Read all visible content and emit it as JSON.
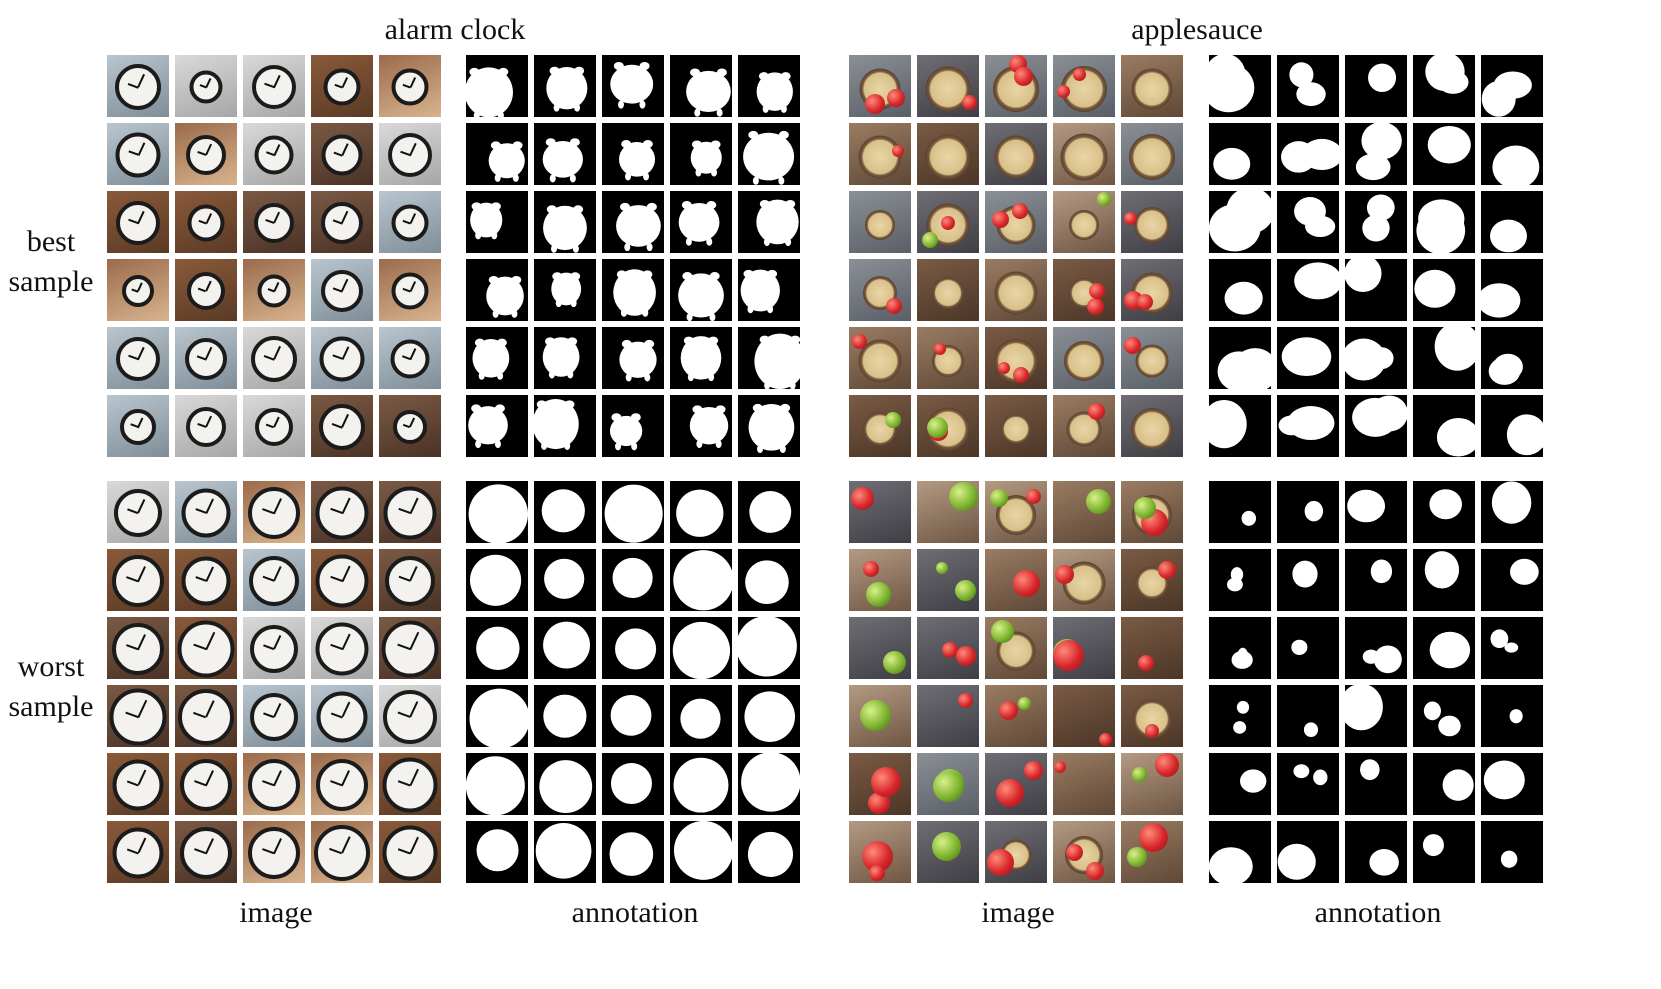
{
  "headers": {
    "left": "alarm clock",
    "right": "applesauce"
  },
  "row_labels": {
    "best": [
      "best",
      "sample"
    ],
    "worst": [
      "worst",
      "sample"
    ]
  },
  "column_labels": {
    "left_image": "image",
    "left_annotation": "annotation",
    "right_image": "image",
    "right_annotation": "annotation"
  }
}
